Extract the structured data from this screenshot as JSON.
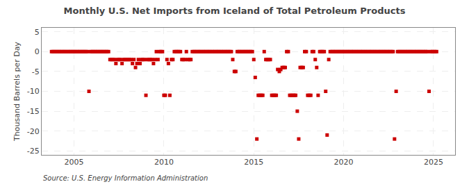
{
  "chart_data": {
    "type": "scatter",
    "title": "Monthly U.S. Net Imports from Iceland of Total Petroleum Products",
    "y_label": "Thousand Barrels per Day",
    "annotations": [
      "Source: U.S. Energy Information Administration"
    ],
    "color": "#cc0000",
    "marker": "square",
    "grid": true,
    "xlim": [
      2003.2,
      2026.2
    ],
    "xticks": [
      2005,
      2010,
      2015,
      2020,
      2025
    ],
    "ylim": [
      -26,
      6
    ],
    "yticks": [
      5,
      0,
      -5,
      -10,
      -15,
      -20,
      -25
    ],
    "x": [
      2003.75,
      2003.83,
      2003.92,
      2004.0,
      2004.08,
      2004.17,
      2004.25,
      2004.33,
      2004.42,
      2004.5,
      2004.58,
      2004.67,
      2004.75,
      2004.83,
      2004.92,
      2005.0,
      2005.08,
      2005.17,
      2005.25,
      2005.33,
      2005.42,
      2005.5,
      2005.58,
      2005.67,
      2005.75,
      2005.83,
      2005.92,
      2006.0,
      2006.08,
      2006.17,
      2006.25,
      2006.33,
      2006.42,
      2006.5,
      2006.58,
      2006.67,
      2006.75,
      2006.83,
      2006.92,
      2007.0,
      2007.08,
      2007.17,
      2007.25,
      2007.33,
      2007.42,
      2007.5,
      2007.58,
      2007.67,
      2007.75,
      2007.83,
      2007.92,
      2008.0,
      2008.08,
      2008.17,
      2008.25,
      2008.33,
      2008.42,
      2008.5,
      2008.58,
      2008.67,
      2008.75,
      2008.83,
      2008.92,
      2009.0,
      2009.08,
      2009.17,
      2009.25,
      2009.33,
      2009.42,
      2009.5,
      2009.58,
      2009.67,
      2009.75,
      2009.83,
      2009.92,
      2010.0,
      2010.08,
      2010.17,
      2010.25,
      2010.33,
      2010.42,
      2010.5,
      2010.58,
      2010.67,
      2010.75,
      2010.83,
      2010.92,
      2011.0,
      2011.08,
      2011.17,
      2011.25,
      2011.33,
      2011.42,
      2011.5,
      2011.58,
      2011.67,
      2011.75,
      2011.83,
      2011.92,
      2012.0,
      2012.08,
      2012.17,
      2012.25,
      2012.33,
      2012.42,
      2012.5,
      2012.58,
      2012.67,
      2012.75,
      2012.83,
      2012.92,
      2013.0,
      2013.08,
      2013.17,
      2013.25,
      2013.33,
      2013.42,
      2013.5,
      2013.58,
      2013.67,
      2013.75,
      2013.83,
      2013.92,
      2014.0,
      2014.08,
      2014.17,
      2014.25,
      2014.33,
      2014.42,
      2014.5,
      2014.58,
      2014.67,
      2014.75,
      2014.83,
      2014.92,
      2015.0,
      2015.08,
      2015.17,
      2015.25,
      2015.33,
      2015.42,
      2015.5,
      2015.58,
      2015.67,
      2015.75,
      2015.83,
      2015.92,
      2016.0,
      2016.08,
      2016.17,
      2016.25,
      2016.33,
      2016.42,
      2016.5,
      2016.58,
      2016.67,
      2016.75,
      2016.83,
      2016.92,
      2017.0,
      2017.08,
      2017.17,
      2017.25,
      2017.33,
      2017.42,
      2017.5,
      2017.58,
      2017.67,
      2017.75,
      2017.83,
      2017.92,
      2018.0,
      2018.08,
      2018.17,
      2018.25,
      2018.33,
      2018.42,
      2018.5,
      2018.58,
      2018.67,
      2018.75,
      2018.83,
      2018.92,
      2019.0,
      2019.08,
      2019.17,
      2019.25,
      2019.33,
      2019.42,
      2019.5,
      2019.58,
      2019.67,
      2019.75,
      2019.83,
      2019.92,
      2020.0,
      2020.08,
      2020.17,
      2020.25,
      2020.33,
      2020.42,
      2020.5,
      2020.58,
      2020.67,
      2020.75,
      2020.83,
      2020.92,
      2021.0,
      2021.08,
      2021.17,
      2021.25,
      2021.33,
      2021.42,
      2021.5,
      2021.58,
      2021.67,
      2021.75,
      2021.83,
      2021.92,
      2022.0,
      2022.08,
      2022.17,
      2022.25,
      2022.33,
      2022.42,
      2022.5,
      2022.58,
      2022.67,
      2022.75,
      2022.83,
      2022.92,
      2023.0,
      2023.08,
      2023.17,
      2023.25,
      2023.33,
      2023.42,
      2023.5,
      2023.58,
      2023.67,
      2023.75,
      2023.83,
      2023.92,
      2024.0,
      2024.08,
      2024.17,
      2024.25,
      2024.33,
      2024.42,
      2024.5,
      2024.58,
      2024.67,
      2024.75,
      2024.83,
      2024.92,
      2025.0,
      2025.08,
      2025.17
    ],
    "values": [
      0,
      0,
      0,
      0,
      0,
      0,
      0,
      0,
      0,
      0,
      0,
      0,
      0,
      0,
      0,
      0,
      0,
      0,
      0,
      0,
      0,
      0,
      0,
      0,
      0,
      -10,
      0,
      0,
      0,
      0,
      0,
      0,
      0,
      0,
      0,
      0,
      0,
      0,
      0,
      -2,
      -2,
      -2,
      -2,
      -3,
      -2,
      -2,
      -2,
      -3,
      -2,
      -2,
      -2,
      -2,
      -2,
      -2,
      -3,
      -2,
      -4,
      -3,
      -2,
      -3,
      -2,
      -2,
      -2,
      -11,
      -2,
      -2,
      -2,
      -2,
      -3,
      -2,
      0,
      -2,
      0,
      0,
      0,
      -11,
      -11,
      -2,
      -3,
      -11,
      -2,
      -2,
      0,
      0,
      0,
      0,
      0,
      -2,
      -2,
      -2,
      0,
      -2,
      -2,
      -2,
      0,
      0,
      0,
      0,
      0,
      0,
      0,
      0,
      0,
      0,
      0,
      0,
      0,
      0,
      0,
      0,
      0,
      0,
      0,
      0,
      0,
      0,
      0,
      0,
      0,
      0,
      0,
      -2,
      -5,
      -5,
      0,
      0,
      0,
      0,
      0,
      0,
      0,
      0,
      0,
      0,
      0,
      -2,
      -6.5,
      -22,
      -11,
      -11,
      -11,
      -11,
      0,
      -2,
      -2,
      -2,
      -2,
      -11,
      -11,
      -11,
      -11,
      -4.5,
      -5,
      -4.5,
      -4,
      -4,
      -4,
      0,
      0,
      -11,
      -11,
      -11,
      -11,
      -11,
      -15,
      -22,
      -4,
      -4,
      -4,
      0,
      0,
      -11,
      -11,
      -11,
      0,
      0,
      -2,
      -4,
      -11,
      0,
      0,
      0,
      0,
      -10,
      -21,
      -2,
      0,
      0,
      0,
      0,
      0,
      0,
      0,
      0,
      0,
      0,
      0,
      0,
      0,
      0,
      0,
      0,
      0,
      0,
      0,
      0,
      0,
      0,
      0,
      0,
      0,
      0,
      0,
      0,
      0,
      0,
      0,
      0,
      0,
      0,
      0,
      0,
      0,
      0,
      0,
      0,
      0,
      0,
      0,
      -22,
      -10,
      0,
      0,
      0,
      0,
      0,
      0,
      0,
      0,
      0,
      0,
      0,
      0,
      0,
      0,
      0,
      0,
      0,
      0,
      0,
      0,
      0,
      -10,
      0,
      0,
      0,
      0,
      0
    ]
  }
}
